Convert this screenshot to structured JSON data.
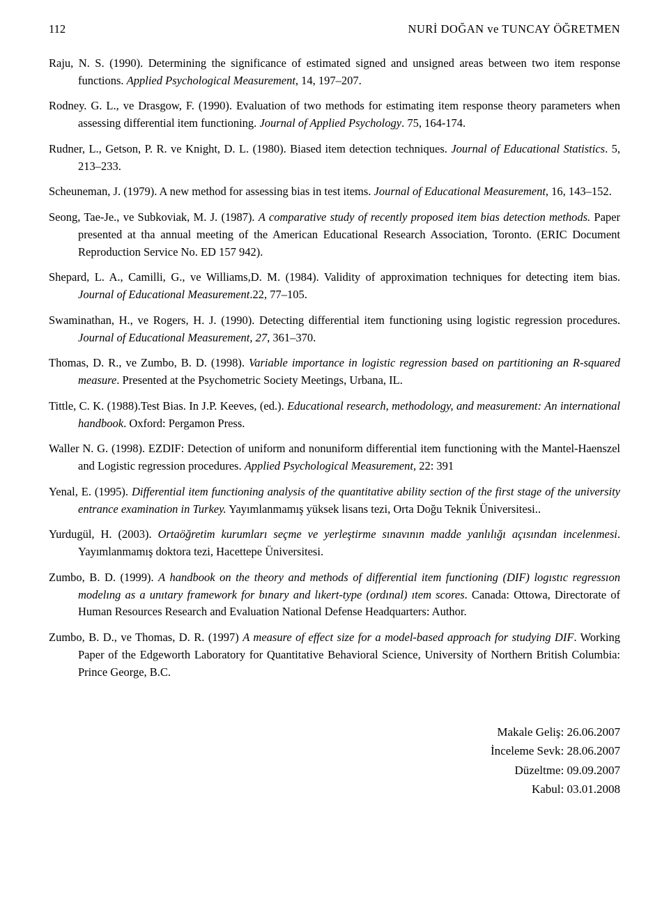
{
  "header": {
    "page_number": "112",
    "title": "NURİ DOĞAN ve TUNCAY ÖĞRETMEN"
  },
  "references": [
    {
      "text": "Raju, N. S. (1990). Determining the significance of estimated signed and unsigned areas between two item response functions. ",
      "italic": "Applied Psychological Measurement",
      "tail": ", 14, 197–207."
    },
    {
      "text": "Rodney. G. L., ve Drasgow, F. (1990). Evaluation of two methods for estimating item response theory parameters when assessing differential item functioning. ",
      "italic": "Journal of Applied Psychology",
      "tail": ". 75, 164-174."
    },
    {
      "text": "Rudner, L., Getson, P. R. ve Knight, D. L. (1980). Biased item detection techniques. ",
      "italic": "Journal of Educational Statistics",
      "tail": ". 5, 213–233."
    },
    {
      "text": "Scheuneman, J. (1979). A new method for assessing bias in test items. ",
      "italic": "Journal of Educational Measurement",
      "tail": ", 16, 143–152."
    },
    {
      "text": "Seong, Tae-Je., ve Subkoviak, M. J. (1987). ",
      "italic": "A comparative study of recently proposed item bias detection methods.",
      "tail": " Paper presented at tha annual meeting of the American Educational Research Association, Toronto. (ERIC Document Reproduction Service No. ED 157 942)."
    },
    {
      "text": "Shepard, L. A., Camilli, G., ve Williams,D. M. (1984). Validity of approximation techniques for detecting item bias. ",
      "italic": "Journal of Educational Measurement",
      "tail": ".22, 77–105."
    },
    {
      "text": "Swaminathan, H., ve Rogers, H. J. (1990). Detecting differential item functioning using logistic regression procedures. ",
      "italic": "Journal of Educational Measurement, 27",
      "tail": ", 361–370."
    },
    {
      "text": "Thomas, D. R., ve Zumbo, B. D. (1998). ",
      "italic": "Variable importance in logistic regression based on partitioning an R-squared measure",
      "tail": ". Presented at the Psychometric Society Meetings, Urbana, IL."
    },
    {
      "text": "Tittle, C. K. (1988).Test Bias. In J.P. Keeves, (ed.). ",
      "italic": "Educational research, methodology, and measurement: An international handbook",
      "tail": ". Oxford: Pergamon Press."
    },
    {
      "text": "Waller N. G. (1998). EZDIF: Detection of uniform and nonuniform differential item functioning with the Mantel-Haenszel and Logistic regression procedures. ",
      "italic": "Applied Psychological Measurement,",
      "tail": " 22: 391"
    },
    {
      "text": "Yenal, E. (1995). ",
      "italic": "Differential item functioning analysis of the quantitative ability section of the first stage of the university entrance examination in Turkey.",
      "tail": " Yayımlanmamış yüksek lisans tezi, Orta Doğu Teknik Üniversitesi.."
    },
    {
      "text": "Yurdugül, H. (2003). ",
      "italic": "Ortaöğretim kurumları seçme ve yerleştirme sınavının madde yanlılığı açısından incelenmesi",
      "tail": ". Yayımlanmamış doktora tezi, Hacettepe Üniversitesi."
    },
    {
      "text": "Zumbo, B. D. (1999). ",
      "italic": "A handbook on the theory and methods of differential item functioning (DIF) logıstıc regressıon modelıng as a unıtary framework for bınary and lıkert-type (ordınal) ıtem scores",
      "tail": ". Canada: Ottowa, Directorate of Human Resources Research and Evaluation National Defense Headquarters: Author."
    },
    {
      "text": "Zumbo, B. D., ve Thomas, D. R. (1997) ",
      "italic": "A measure of effect size for a model-based approach for studying DIF",
      "tail": ". Working Paper of the Edgeworth Laboratory for Quantitative Behavioral Science, University of Northern British Columbia: Prince George, B.C."
    }
  ],
  "footer": {
    "line1": "Makale Geliş: 26.06.2007",
    "line2": "İnceleme Sevk: 28.06.2007",
    "line3": "Düzeltme: 09.09.2007",
    "line4": "Kabul: 03.01.2008"
  }
}
